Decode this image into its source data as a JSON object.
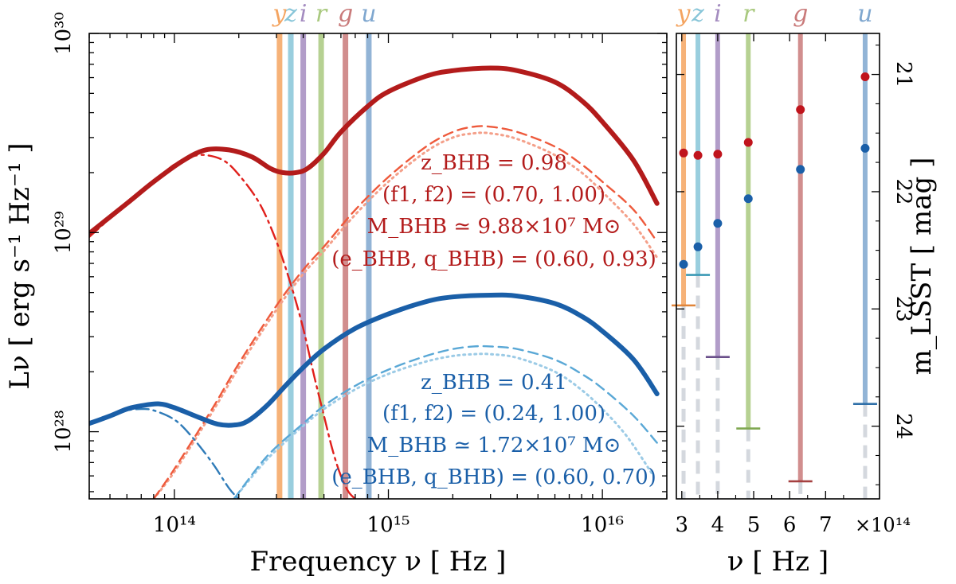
{
  "chart_data": [
    {
      "type": "line",
      "panel": "left",
      "xlabel": "Frequency ν [ Hz ]",
      "ylabel": "Lν [ erg s⁻¹ Hz⁻¹ ]",
      "xscale": "log",
      "yscale": "log",
      "xlim": [
        40000000000000.0,
        2e+16
      ],
      "ylim": [
        4.6e+27,
        1e+30
      ],
      "xticks": [
        "10¹⁴",
        "10¹⁵",
        "10¹⁶"
      ],
      "yticks": [
        "10²⁸",
        "10²⁹",
        "10³⁰"
      ],
      "bands": [
        {
          "name": "y",
          "nu": 310000000000000.0,
          "color": "#f4a460"
        },
        {
          "name": "z",
          "nu": 350000000000000.0,
          "color": "#87c5d8"
        },
        {
          "name": "i",
          "nu": 400000000000000.0,
          "color": "#a48cc0"
        },
        {
          "name": "r",
          "nu": 485000000000000.0,
          "color": "#a9c97f"
        },
        {
          "name": "g",
          "nu": 630000000000000.0,
          "color": "#c97a7a"
        },
        {
          "name": "u",
          "nu": 810000000000000.0,
          "color": "#7fa7cf"
        }
      ],
      "series": [
        {
          "name": "red system",
          "color": "#b31b1b",
          "annotation": [
            "z_BHB = 0.98",
            "(f1, f2) = (0.70, 1.00)",
            "M_BHB ≃ 9.88×10⁷ M⊙",
            "(e_BHB, q_BHB) = (0.60, 0.93)"
          ],
          "total": {
            "x": [
              40000000000000.0,
              60000000000000.0,
              80000000000000.0,
              110000000000000.0,
              140000000000000.0,
              180000000000000.0,
              230000000000000.0,
              280000000000000.0,
              320000000000000.0,
              370000000000000.0,
              420000000000000.0,
              500000000000000.0,
              600000000000000.0,
              800000000000000.0,
              1000000000000000.0,
              1500000000000000.0,
              2000000000000000.0,
              3000000000000000.0,
              4000000000000000.0,
              6000000000000000.0,
              8000000000000000.0,
              1e+16,
              1.4e+16,
              1.8e+16
            ],
            "y": [
              9.9e+28,
              1.4e+29,
              1.8e+29,
              2.3e+29,
              2.6e+29,
              2.6e+29,
              2.4e+29,
              2.1e+29,
              2e+29,
              2e+29,
              2.1e+29,
              2.5e+29,
              3.2e+29,
              4.3e+29,
              5.1e+29,
              6.1e+29,
              6.5e+29,
              6.7e+29,
              6.5e+29,
              5.7e+29,
              4.6e+29,
              3.6e+29,
              2.3e+29,
              1.4e+29
            ]
          },
          "disk": {
            "x": [
              40000000000000.0,
              60000000000000.0,
              80000000000000.0,
              100000000000000.0,
              120000000000000.0,
              140000000000000.0,
              170000000000000.0,
              200000000000000.0,
              250000000000000.0,
              300000000000000.0,
              350000000000000.0,
              400000000000000.0,
              450000000000000.0,
              500000000000000.0,
              550000000000000.0,
              600000000000000.0,
              650000000000000.0,
              700000000000000.0
            ],
            "y": [
              9.5e+28,
              1.4e+29,
              1.8e+29,
              2.2e+29,
              2.4e+29,
              2.45e+29,
              2.3e+29,
              1.95e+29,
              1.4e+29,
              9e+28,
              5.5e+28,
              3.3e+28,
              1.9e+28,
              1.2e+28,
              8e+27,
              6e+27,
              5e+27,
              4.6e+27
            ]
          },
          "jet": {
            "x": [
              80000000000000.0,
              100000000000000.0,
              150000000000000.0,
              200000000000000.0,
              300000000000000.0,
              400000000000000.0,
              500000000000000.0,
              700000000000000.0,
              1000000000000000.0,
              1500000000000000.0,
              2000000000000000.0,
              2500000000000000.0,
              3000000000000000.0,
              4000000000000000.0,
              6000000000000000.0,
              8000000000000000.0,
              1e+16,
              1.4e+16,
              1.8e+16
            ],
            "y": [
              4.6e+27,
              6.5e+27,
              1.3e+28,
              2.2e+28,
              4.3e+28,
              6.5e+28,
              8.5e+28,
              1.3e+29,
              1.9e+29,
              2.7e+29,
              3.2e+29,
              3.4e+29,
              3.4e+29,
              3.2e+29,
              2.7e+29,
              2.2e+29,
              1.8e+29,
              1.3e+29,
              9e+28
            ]
          },
          "jet_alt": {
            "x": [
              80000000000000.0,
              100000000000000.0,
              150000000000000.0,
              200000000000000.0,
              300000000000000.0,
              400000000000000.0,
              500000000000000.0,
              700000000000000.0,
              1000000000000000.0,
              1500000000000000.0,
              2000000000000000.0,
              2500000000000000.0,
              3000000000000000.0,
              4000000000000000.0,
              6000000000000000.0,
              8000000000000000.0,
              1e+16,
              1.4e+16,
              1.8e+16
            ],
            "y": [
              4.6e+27,
              6.3e+27,
              1.25e+28,
              2.1e+28,
              4.1e+28,
              6.2e+28,
              8.1e+28,
              1.23e+29,
              1.8e+29,
              2.55e+29,
              3e+29,
              3.15e+29,
              3.15e+29,
              2.95e+29,
              2.45e+29,
              2e+29,
              1.6e+29,
              1.1e+29,
              7.5e+28
            ]
          }
        },
        {
          "name": "blue system",
          "color": "#1a5fa8",
          "annotation": [
            "z_BHB = 0.41",
            "(f1, f2) = (0.24, 1.00)",
            "M_BHB ≃ 1.72×10⁷ M⊙",
            "(e_BHB, q_BHB) = (0.60, 0.70)"
          ],
          "total": {
            "x": [
              40000000000000.0,
              50000000000000.0,
              60000000000000.0,
              70000000000000.0,
              85000000000000.0,
              100000000000000.0,
              130000000000000.0,
              160000000000000.0,
              190000000000000.0,
              220000000000000.0,
              270000000000000.0,
              330000000000000.0,
              400000000000000.0,
              500000000000000.0,
              700000000000000.0,
              1000000000000000.0,
              1500000000000000.0,
              2000000000000000.0,
              3000000000000000.0,
              4000000000000000.0,
              6000000000000000.0,
              8000000000000000.0,
              1e+16,
              1.4e+16,
              1.8e+16
            ],
            "y": [
              1.1e+28,
              1.2e+28,
              1.3e+28,
              1.35e+28,
              1.38e+28,
              1.32e+28,
              1.18e+28,
              1.09e+28,
              1.08e+28,
              1.13e+28,
              1.35e+28,
              1.7e+28,
              2.1e+28,
              2.6e+28,
              3.3e+28,
              3.9e+28,
              4.5e+28,
              4.75e+28,
              4.85e+28,
              4.8e+28,
              4.4e+28,
              3.8e+28,
              3.2e+28,
              2.3e+28,
              1.55e+28
            ]
          },
          "disk": {
            "x": [
              40000000000000.0,
              50000000000000.0,
              60000000000000.0,
              70000000000000.0,
              80000000000000.0,
              100000000000000.0,
              120000000000000.0,
              150000000000000.0,
              180000000000000.0,
              200000000000000.0,
              220000000000000.0
            ],
            "y": [
              1.09e+28,
              1.2e+28,
              1.28e+28,
              1.3e+28,
              1.28e+28,
              1.15e+28,
              9.5e+27,
              7e+27,
              5.2e+27,
              4.6e+27,
              4.2e+27
            ]
          },
          "jet": {
            "x": [
              190000000000000.0,
              250000000000000.0,
              300000000000000.0,
              400000000000000.0,
              500000000000000.0,
              700000000000000.0,
              1000000000000000.0,
              1500000000000000.0,
              2000000000000000.0,
              2500000000000000.0,
              3000000000000000.0,
              4000000000000000.0,
              6000000000000000.0,
              8000000000000000.0,
              1e+16,
              1.4e+16,
              1.8e+16
            ],
            "y": [
              4.6e+27,
              6.8e+27,
              8.4e+27,
              1.1e+28,
              1.35e+28,
              1.7e+28,
              2.05e+28,
              2.4e+28,
              2.6e+28,
              2.68e+28,
              2.68e+28,
              2.6e+28,
              2.3e+28,
              1.95e+28,
              1.65e+28,
              1.2e+28,
              8.8e+27
            ]
          },
          "jet_alt": {
            "x": [
              190000000000000.0,
              250000000000000.0,
              300000000000000.0,
              400000000000000.0,
              500000000000000.0,
              700000000000000.0,
              1000000000000000.0,
              1500000000000000.0,
              2000000000000000.0,
              2500000000000000.0,
              3000000000000000.0,
              4000000000000000.0,
              6000000000000000.0,
              8000000000000000.0,
              1e+16,
              1.3e+16,
              1.7e+16
            ],
            "y": [
              4.6e+27,
              6.6e+27,
              8.1e+27,
              1.07e+28,
              1.3e+28,
              1.63e+28,
              1.95e+28,
              2.25e+28,
              2.4e+28,
              2.45e+28,
              2.45e+28,
              2.35e+28,
              2e+28,
              1.62e+28,
              1.3e+28,
              9.5e+27,
              6.2e+27
            ]
          }
        }
      ]
    },
    {
      "type": "scatter",
      "panel": "right",
      "xlabel": "ν [ Hz ]",
      "ylabel": "m_LSST [ mag ]",
      "xlim": [
        285000000000000.0,
        850000000000000.0
      ],
      "ylim": [
        24.62,
        20.65
      ],
      "xticks": [
        "3",
        "4",
        "5",
        "6",
        "7"
      ],
      "xtick_values": [
        300000000000000.0,
        400000000000000.0,
        500000000000000.0,
        600000000000000.0,
        700000000000000.0
      ],
      "xscale_label": "×10¹⁴",
      "yticks": [
        "21",
        "22",
        "23",
        "24"
      ],
      "ytick_values": [
        21,
        22,
        23,
        24
      ],
      "bands": [
        {
          "name": "y",
          "nu": 305000000000000.0,
          "red": 21.67,
          "blue": 22.62,
          "limit": 22.97,
          "color": "#f4a460",
          "limit_color": "#e0853a"
        },
        {
          "name": "z",
          "nu": 345000000000000.0,
          "red": 21.69,
          "blue": 22.47,
          "limit": 22.71,
          "color": "#87c5d8",
          "limit_color": "#3a98b4"
        },
        {
          "name": "i",
          "nu": 400000000000000.0,
          "red": 21.68,
          "blue": 22.27,
          "limit": 23.41,
          "color": "#a48cc0",
          "limit_color": "#6a4f8a"
        },
        {
          "name": "r",
          "nu": 485000000000000.0,
          "red": 21.58,
          "blue": 22.06,
          "limit": 24.02,
          "color": "#a9c97f",
          "limit_color": "#7fa750"
        },
        {
          "name": "g",
          "nu": 630000000000000.0,
          "red": 21.3,
          "blue": 21.81,
          "limit": 24.47,
          "color": "#c97a7a",
          "limit_color": "#a54040"
        },
        {
          "name": "u",
          "nu": 810000000000000.0,
          "red": 21.02,
          "blue": 21.63,
          "limit": 23.81,
          "color": "#7fa7cf",
          "limit_color": "#2f6fa8"
        }
      ],
      "red_color": "#c0141c",
      "blue_color": "#1a5fa8"
    }
  ]
}
